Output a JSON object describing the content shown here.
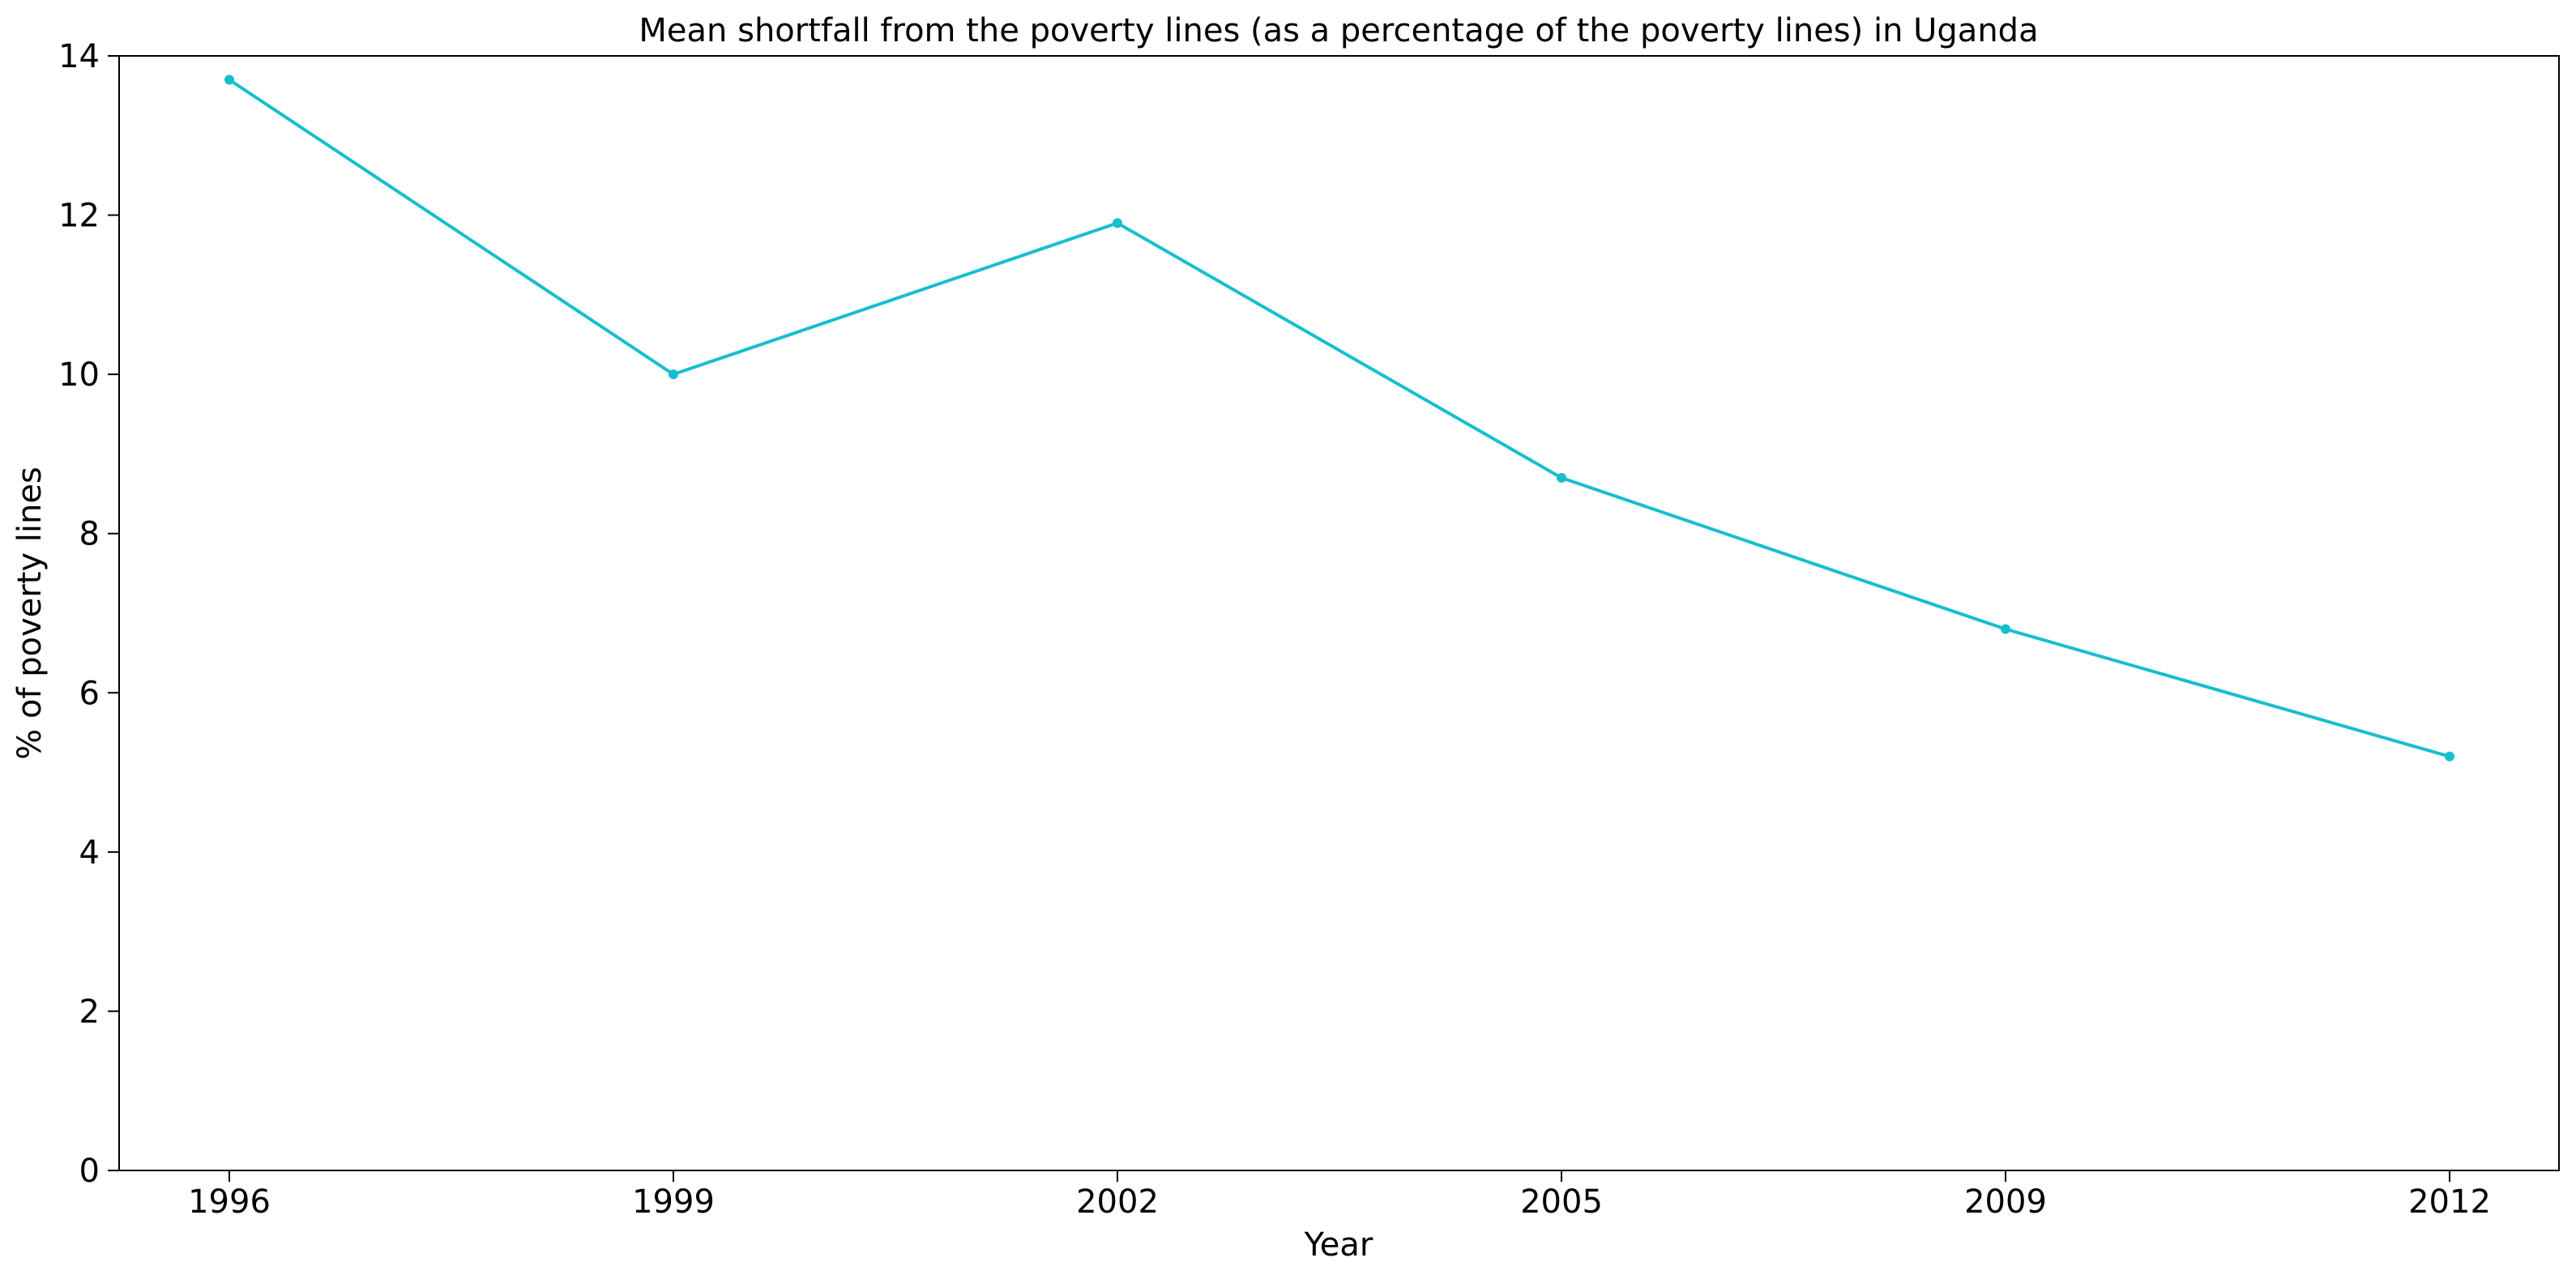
{
  "chart_data": {
    "type": "line",
    "title": "Mean shortfall from the poverty lines (as a percentage of the poverty lines) in Uganda",
    "xlabel": "Year",
    "ylabel": "% of poverty lines",
    "categories": [
      "1996",
      "1999",
      "2002",
      "2005",
      "2009",
      "2012"
    ],
    "values": [
      13.7,
      10.0,
      11.9,
      8.7,
      6.8,
      5.2
    ],
    "ylim": [
      0,
      14
    ],
    "yticks": [
      0,
      2,
      4,
      6,
      8,
      10,
      12,
      14
    ],
    "grid": false,
    "legend": "none",
    "line_color": "#17becf"
  }
}
